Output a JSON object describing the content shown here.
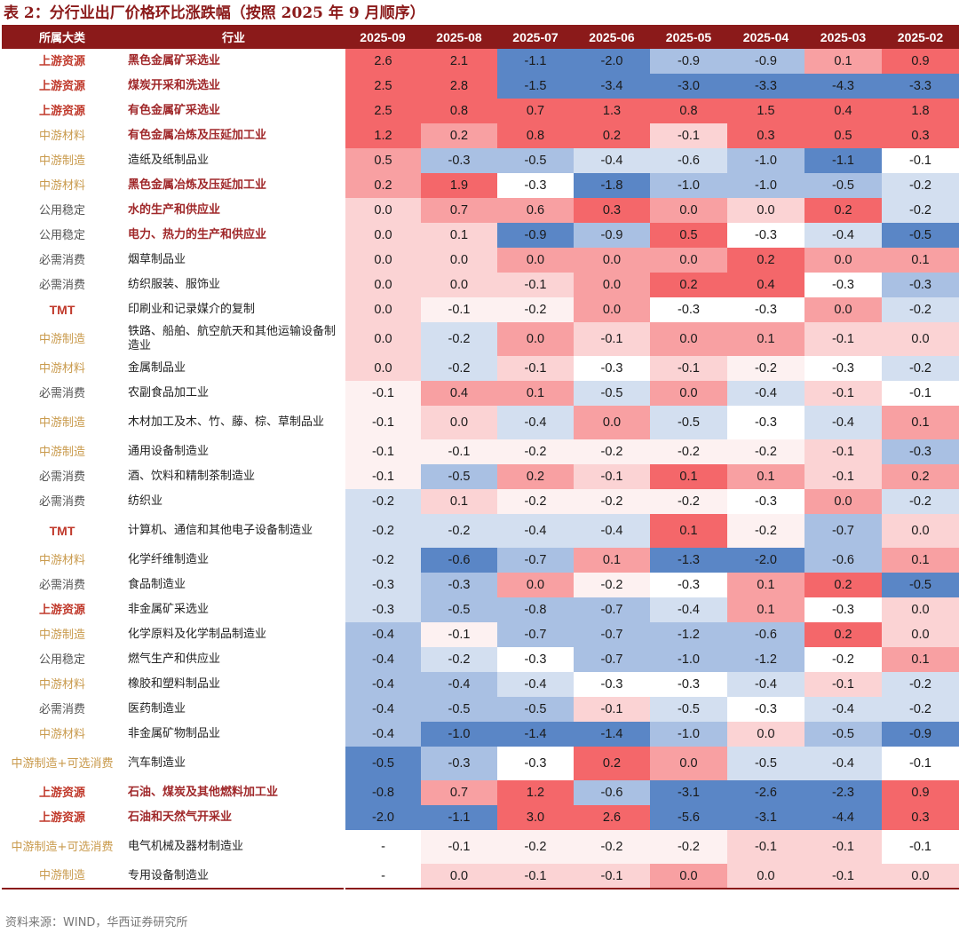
{
  "title": "表 2：分行业出厂价格环比涨跌幅（按照 2025 年 9 月顺序）",
  "headers": {
    "category": "所属大类",
    "industry": "行业",
    "months": [
      "2025-09",
      "2025-08",
      "2025-07",
      "2025-06",
      "2025-05",
      "2025-04",
      "2025-03",
      "2025-02"
    ]
  },
  "rows": [
    {
      "category": "上游资源",
      "industry": "黑色金属矿采选业",
      "values": [
        "2.6",
        "2.1",
        "-1.1",
        "-2.0",
        "-0.9",
        "-0.9",
        "0.1",
        "0.9"
      ]
    },
    {
      "category": "上游资源",
      "industry": "煤炭开采和洗选业",
      "values": [
        "2.5",
        "2.8",
        "-1.5",
        "-3.4",
        "-3.0",
        "-3.3",
        "-4.3",
        "-3.3"
      ]
    },
    {
      "category": "上游资源",
      "industry": "有色金属矿采选业",
      "values": [
        "2.5",
        "0.8",
        "0.7",
        "1.3",
        "0.8",
        "1.5",
        "0.4",
        "1.8"
      ]
    },
    {
      "category": "中游材料",
      "industry": "有色金属冶炼及压延加工业",
      "values": [
        "1.2",
        "0.2",
        "0.8",
        "0.2",
        "-0.1",
        "0.3",
        "0.5",
        "0.3"
      ]
    },
    {
      "category": "中游制造",
      "industry": "造纸及纸制品业",
      "values": [
        "0.5",
        "-0.3",
        "-0.5",
        "-0.4",
        "-0.6",
        "-1.0",
        "-1.1",
        "-0.1"
      ]
    },
    {
      "category": "中游材料",
      "industry": "黑色金属冶炼及压延加工业",
      "values": [
        "0.2",
        "1.9",
        "-0.3",
        "-1.8",
        "-1.0",
        "-1.0",
        "-0.5",
        "-0.2"
      ]
    },
    {
      "category": "公用稳定",
      "industry": "水的生产和供应业",
      "values": [
        "0.0",
        "0.7",
        "0.6",
        "0.3",
        "0.0",
        "0.0",
        "0.2",
        "-0.2"
      ]
    },
    {
      "category": "公用稳定",
      "industry": "电力、热力的生产和供应业",
      "values": [
        "0.0",
        "0.1",
        "-0.9",
        "-0.9",
        "0.5",
        "-0.3",
        "-0.4",
        "-0.5"
      ]
    },
    {
      "category": "必需消费",
      "industry": "烟草制品业",
      "values": [
        "0.0",
        "0.0",
        "0.0",
        "0.0",
        "0.0",
        "0.2",
        "0.0",
        "0.1"
      ]
    },
    {
      "category": "必需消费",
      "industry": "纺织服装、服饰业",
      "values": [
        "0.0",
        "0.0",
        "-0.1",
        "0.0",
        "0.2",
        "0.4",
        "-0.3",
        "-0.3"
      ]
    },
    {
      "category": "TMT",
      "industry": "印刷业和记录媒介的复制",
      "values": [
        "0.0",
        "-0.1",
        "-0.2",
        "0.0",
        "-0.3",
        "-0.3",
        "0.0",
        "-0.2"
      ]
    },
    {
      "category": "中游制造",
      "industry": "铁路、船舶、航空航天和其他运输设备制造业",
      "values": [
        "0.0",
        "-0.2",
        "0.0",
        "-0.1",
        "0.0",
        "0.1",
        "-0.1",
        "0.0"
      ]
    },
    {
      "category": "中游材料",
      "industry": "金属制品业",
      "values": [
        "0.0",
        "-0.2",
        "-0.1",
        "-0.3",
        "-0.1",
        "-0.2",
        "-0.3",
        "-0.2"
      ]
    },
    {
      "category": "必需消费",
      "industry": "农副食品加工业",
      "values": [
        "-0.1",
        "0.4",
        "0.1",
        "-0.5",
        "0.0",
        "-0.4",
        "-0.1",
        "-0.1"
      ]
    },
    {
      "category": "中游制造",
      "industry": "木材加工及木、竹、藤、棕、草制品业",
      "values": [
        "-0.1",
        "0.0",
        "-0.4",
        "0.0",
        "-0.5",
        "-0.3",
        "-0.4",
        "0.1"
      ]
    },
    {
      "category": "中游制造",
      "industry": "通用设备制造业",
      "values": [
        "-0.1",
        "-0.1",
        "-0.2",
        "-0.2",
        "-0.2",
        "-0.2",
        "-0.1",
        "-0.3"
      ]
    },
    {
      "category": "必需消费",
      "industry": "酒、饮料和精制茶制造业",
      "values": [
        "-0.1",
        "-0.5",
        "0.2",
        "-0.1",
        "0.1",
        "0.1",
        "-0.1",
        "0.2"
      ]
    },
    {
      "category": "必需消费",
      "industry": "纺织业",
      "values": [
        "-0.2",
        "0.1",
        "-0.2",
        "-0.2",
        "-0.2",
        "-0.3",
        "0.0",
        "-0.2"
      ]
    },
    {
      "category": "TMT",
      "industry": "计算机、通信和其他电子设备制造业",
      "values": [
        "-0.2",
        "-0.2",
        "-0.4",
        "-0.4",
        "0.1",
        "-0.2",
        "-0.7",
        "0.0"
      ]
    },
    {
      "category": "中游材料",
      "industry": "化学纤维制造业",
      "values": [
        "-0.2",
        "-0.6",
        "-0.7",
        "0.1",
        "-1.3",
        "-2.0",
        "-0.6",
        "0.1"
      ]
    },
    {
      "category": "必需消费",
      "industry": "食品制造业",
      "values": [
        "-0.3",
        "-0.3",
        "0.0",
        "-0.2",
        "-0.3",
        "0.1",
        "0.2",
        "-0.5"
      ]
    },
    {
      "category": "上游资源",
      "industry": "非金属矿采选业",
      "values": [
        "-0.3",
        "-0.5",
        "-0.8",
        "-0.7",
        "-0.4",
        "0.1",
        "-0.3",
        "0.0"
      ]
    },
    {
      "category": "中游制造",
      "industry": "化学原料及化学制品制造业",
      "values": [
        "-0.4",
        "-0.1",
        "-0.7",
        "-0.7",
        "-1.2",
        "-0.6",
        "0.2",
        "0.0"
      ]
    },
    {
      "category": "公用稳定",
      "industry": "燃气生产和供应业",
      "values": [
        "-0.4",
        "-0.2",
        "-0.3",
        "-0.7",
        "-1.0",
        "-1.2",
        "-0.2",
        "0.1"
      ]
    },
    {
      "category": "中游材料",
      "industry": "橡胶和塑料制品业",
      "values": [
        "-0.4",
        "-0.4",
        "-0.4",
        "-0.3",
        "-0.3",
        "-0.4",
        "-0.1",
        "-0.2"
      ]
    },
    {
      "category": "必需消费",
      "industry": "医药制造业",
      "values": [
        "-0.4",
        "-0.5",
        "-0.5",
        "-0.1",
        "-0.5",
        "-0.3",
        "-0.4",
        "-0.2"
      ]
    },
    {
      "category": "中游材料",
      "industry": "非金属矿物制品业",
      "values": [
        "-0.4",
        "-1.0",
        "-1.4",
        "-1.4",
        "-1.0",
        "0.0",
        "-0.5",
        "-0.9"
      ]
    },
    {
      "category": "中游制造+可选消费",
      "industry": "汽车制造业",
      "values": [
        "-0.5",
        "-0.3",
        "-0.3",
        "0.2",
        "0.0",
        "-0.5",
        "-0.4",
        "-0.1"
      ]
    },
    {
      "category": "上游资源",
      "industry": "石油、煤炭及其他燃料加工业",
      "values": [
        "-0.8",
        "0.7",
        "1.2",
        "-0.6",
        "-3.1",
        "-2.6",
        "-2.3",
        "0.9"
      ]
    },
    {
      "category": "上游资源",
      "industry": "石油和天然气开采业",
      "values": [
        "-2.0",
        "-1.1",
        "3.0",
        "2.6",
        "-5.6",
        "-3.1",
        "-4.4",
        "0.3"
      ]
    },
    {
      "category": "中游制造+可选消费",
      "industry": "电气机械及器材制造业",
      "values": [
        "-",
        "-0.1",
        "-0.2",
        "-0.2",
        "-0.2",
        "-0.1",
        "-0.1",
        "-0.1"
      ]
    },
    {
      "category": "中游制造",
      "industry": "专用设备制造业",
      "values": [
        "-",
        "0.0",
        "-0.1",
        "-0.1",
        "0.0",
        "0.0",
        "-0.1",
        "0.0"
      ]
    }
  ],
  "source": "资料来源：WIND，华西证券研究所",
  "colors": {
    "header_bg": "#8b1a1a",
    "strong_red": "#f4676a",
    "mid_red": "#f8a0a2",
    "light_red": "#fbd3d4",
    "pale": "#fdf1f1",
    "white": "#ffffff",
    "light_blue": "#d3dff0",
    "mid_blue": "#a9c0e3",
    "strong_blue": "#5a86c6"
  }
}
